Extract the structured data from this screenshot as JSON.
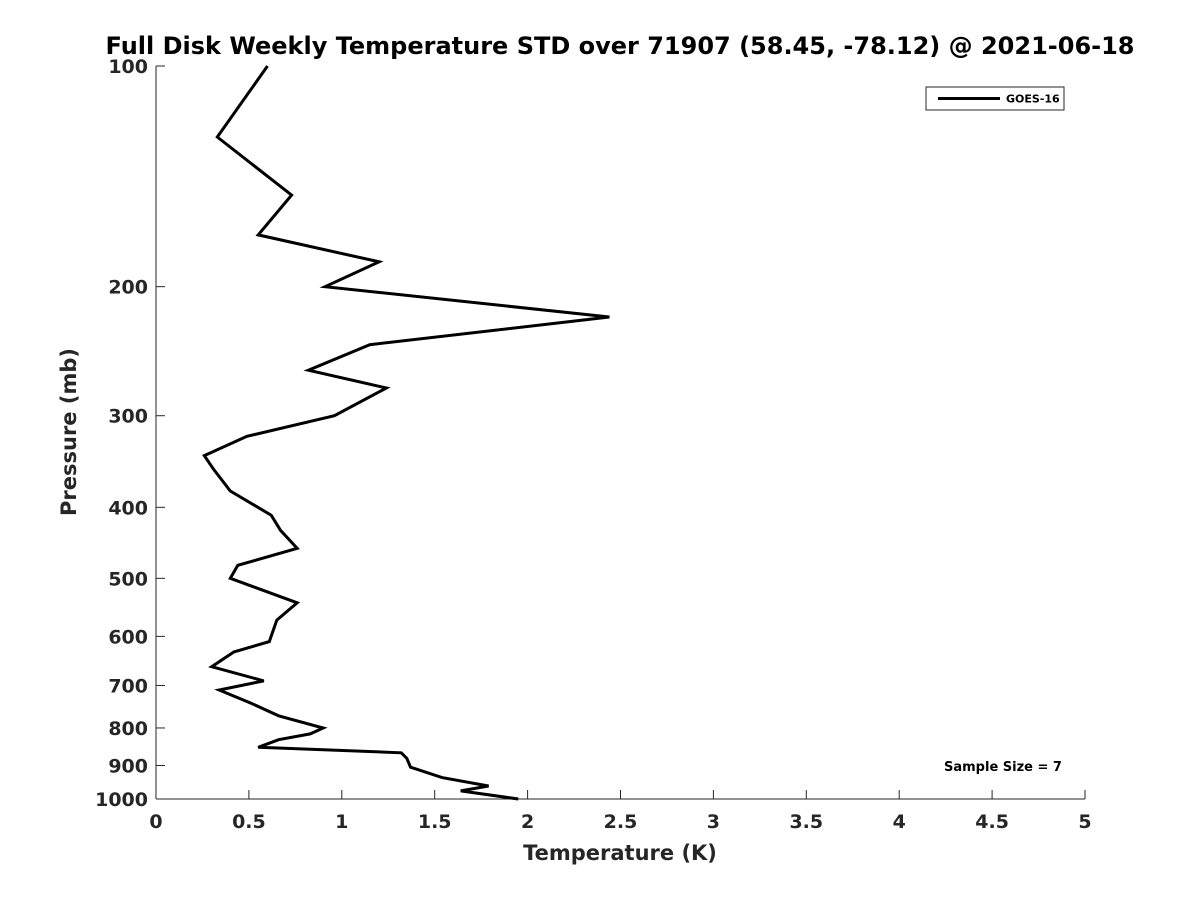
{
  "chart_data": {
    "type": "line",
    "title": "Full Disk Weekly Temperature STD over 71907 (58.45, -78.12) @ 2021-06-18",
    "xlabel": "Temperature (K)",
    "ylabel": "Pressure (mb)",
    "xlim": [
      0,
      5
    ],
    "ylim": [
      100,
      1000
    ],
    "y_scale": "log",
    "y_reversed": true,
    "x_ticks": [
      "0",
      "0.5",
      "1",
      "1.5",
      "2",
      "2.5",
      "3",
      "3.5",
      "4",
      "4.5",
      "5"
    ],
    "y_ticks": [
      "100",
      "200",
      "300",
      "400",
      "500",
      "600",
      "700",
      "800",
      "900",
      "1000"
    ],
    "grid": false,
    "legend": {
      "placement": "top-right",
      "entries": [
        "GOES-16"
      ]
    },
    "annotation": "Sample Size = 7",
    "series": [
      {
        "name": "GOES-16",
        "color": "#000000",
        "x": [
          0.6,
          0.33,
          0.73,
          0.55,
          1.2,
          0.91,
          2.44,
          1.15,
          0.82,
          1.24,
          0.96,
          0.49,
          0.26,
          0.31,
          0.4,
          0.62,
          0.67,
          0.76,
          0.44,
          0.4,
          0.76,
          0.65,
          0.61,
          0.42,
          0.3,
          0.58,
          0.34,
          0.51,
          0.66,
          0.9,
          0.83,
          0.66,
          0.55,
          1.32,
          1.35,
          1.37,
          1.54,
          1.79,
          1.64,
          1.95
        ],
        "y": [
          100,
          125,
          150,
          170,
          185,
          200,
          220,
          240,
          260,
          275,
          300,
          320,
          340,
          355,
          380,
          410,
          430,
          455,
          480,
          500,
          540,
          570,
          610,
          630,
          660,
          690,
          710,
          740,
          770,
          800,
          815,
          830,
          850,
          865,
          880,
          905,
          935,
          960,
          975,
          1000
        ]
      }
    ]
  }
}
